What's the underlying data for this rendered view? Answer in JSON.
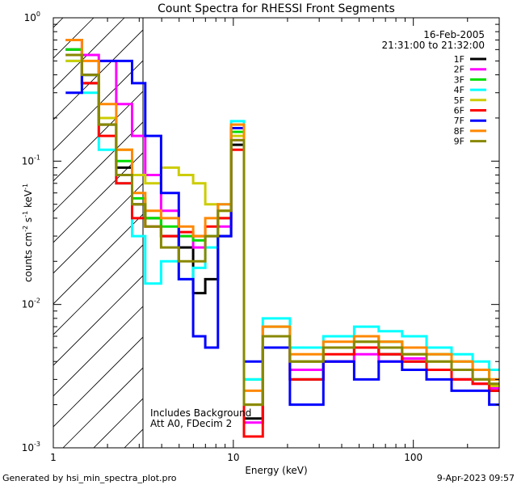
{
  "chart_data": {
    "type": "line",
    "title": "Count Spectra for RHESSI Front Segments",
    "xlabel": "Energy (keV)",
    "ylabel": "counts cm-2 s-1 keV-1",
    "ylabel_parts": {
      "base": "counts cm",
      "exp1": "-2",
      "mid1": " s",
      "exp2": "-1",
      "mid2": " keV",
      "exp3": "-1"
    },
    "xscale": "log",
    "yscale": "log",
    "xlim": [
      1,
      300
    ],
    "ylim": [
      0.001,
      1
    ],
    "x_ticks": [
      {
        "value": 1,
        "label": "1"
      },
      {
        "value": 10,
        "label": "10"
      },
      {
        "value": 100,
        "label": "100"
      }
    ],
    "y_ticks": [
      {
        "value": 1,
        "label": "10",
        "exp": "0"
      },
      {
        "value": 0.1,
        "label": "10",
        "exp": "-1"
      },
      {
        "value": 0.01,
        "label": "10",
        "exp": "-2"
      },
      {
        "value": 0.001,
        "label": "10",
        "exp": "-3"
      }
    ],
    "date": "16-Feb-2005",
    "time_range": "21:31:00 to 21:32:00",
    "annotations": [
      "Includes Background",
      "Att A0, FDecim 2"
    ],
    "hatched_region_keV": [
      1,
      3
    ],
    "legend_position": "top-right",
    "series": [
      {
        "name": "1F",
        "color": "#000000",
        "values": [
          0.6,
          0.35,
          0.18,
          0.09,
          0.05,
          0.04,
          0.03,
          0.025,
          0.012,
          0.015,
          0.03,
          0.13,
          0.0016,
          0.006,
          0.003,
          0.004,
          0.005,
          0.0045,
          0.004,
          0.0035,
          0.003,
          0.003,
          0.0025
        ]
      },
      {
        "name": "2F",
        "color": "#ff00ff",
        "values": [
          0.7,
          0.55,
          0.5,
          0.25,
          0.15,
          0.08,
          0.045,
          0.03,
          0.025,
          0.03,
          0.035,
          0.14,
          0.0015,
          0.005,
          0.0035,
          0.004,
          0.0045,
          0.004,
          0.0042,
          0.0035,
          0.003,
          0.0028,
          0.0026
        ]
      },
      {
        "name": "3F",
        "color": "#00dd00",
        "values": [
          0.6,
          0.4,
          0.2,
          0.1,
          0.055,
          0.04,
          0.035,
          0.03,
          0.028,
          0.03,
          0.04,
          0.16,
          0.003,
          0.007,
          0.004,
          0.005,
          0.006,
          0.0055,
          0.005,
          0.0045,
          0.004,
          0.0035,
          0.003
        ]
      },
      {
        "name": "4F",
        "color": "#00ffff",
        "values": [
          0.5,
          0.3,
          0.12,
          0.07,
          0.03,
          0.014,
          0.02,
          0.015,
          0.018,
          0.025,
          0.05,
          0.19,
          0.003,
          0.008,
          0.005,
          0.006,
          0.007,
          0.0065,
          0.006,
          0.005,
          0.0045,
          0.004,
          0.0035
        ]
      },
      {
        "name": "5F",
        "color": "#cccc00",
        "values": [
          0.5,
          0.4,
          0.2,
          0.12,
          0.08,
          0.07,
          0.09,
          0.08,
          0.07,
          0.05,
          0.045,
          0.15,
          0.002,
          0.006,
          0.004,
          0.005,
          0.0055,
          0.005,
          0.0045,
          0.004,
          0.0035,
          0.003,
          0.0027
        ]
      },
      {
        "name": "6F",
        "color": "#ff0000",
        "values": [
          0.55,
          0.35,
          0.15,
          0.07,
          0.04,
          0.035,
          0.03,
          0.032,
          0.03,
          0.035,
          0.04,
          0.12,
          0.0012,
          0.005,
          0.003,
          0.0045,
          0.005,
          0.0045,
          0.004,
          0.0035,
          0.003,
          0.0028,
          0.0025
        ]
      },
      {
        "name": "7F",
        "color": "#0000ff",
        "values": [
          0.3,
          0.4,
          0.5,
          0.5,
          0.35,
          0.15,
          0.06,
          0.015,
          0.006,
          0.005,
          0.03,
          0.17,
          0.004,
          0.005,
          0.002,
          0.004,
          0.003,
          0.004,
          0.0035,
          0.003,
          0.0025,
          0.0025,
          0.002
        ]
      },
      {
        "name": "8F",
        "color": "#ff8800",
        "values": [
          0.7,
          0.5,
          0.25,
          0.12,
          0.06,
          0.045,
          0.04,
          0.035,
          0.03,
          0.04,
          0.05,
          0.18,
          0.0025,
          0.007,
          0.0045,
          0.0055,
          0.006,
          0.0055,
          0.005,
          0.0045,
          0.004,
          0.0035,
          0.003
        ]
      },
      {
        "name": "9F",
        "color": "#888800",
        "values": [
          0.55,
          0.4,
          0.18,
          0.08,
          0.05,
          0.035,
          0.025,
          0.02,
          0.02,
          0.03,
          0.045,
          0.14,
          0.002,
          0.006,
          0.004,
          0.005,
          0.0055,
          0.005,
          0.0045,
          0.004,
          0.0035,
          0.003,
          0.0028
        ]
      }
    ],
    "x": [
      1.3,
      1.6,
      2.0,
      2.5,
      3.0,
      3.5,
      4.5,
      5.5,
      6.5,
      7.5,
      9.0,
      10.5,
      12.5,
      17,
      25,
      40,
      55,
      75,
      100,
      140,
      190,
      240,
      290
    ]
  },
  "footer": {
    "left": "Generated by hsi_min_spectra_plot.pro",
    "right": "9-Apr-2023 09:57"
  }
}
